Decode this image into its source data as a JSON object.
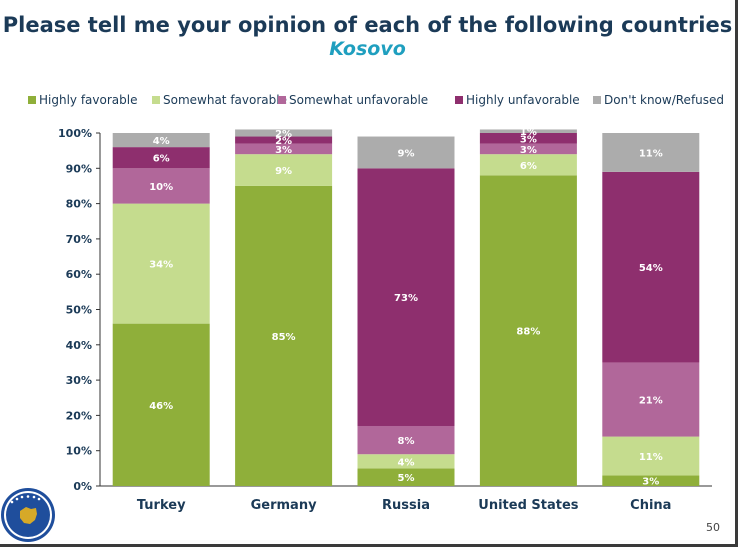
{
  "title": "Please tell me your opinion of each of the following countries",
  "subtitle": "Kosovo",
  "page_number": "50",
  "chart_data": {
    "type": "bar",
    "stacked": true,
    "title": "Please tell me your opinion of each of the following countries",
    "subtitle": "Kosovo",
    "categories": [
      "Turkey",
      "Germany",
      "Russia",
      "United States",
      "China"
    ],
    "ylim": [
      0,
      100
    ],
    "yticks": [
      "0%",
      "10%",
      "20%",
      "30%",
      "40%",
      "50%",
      "60%",
      "70%",
      "80%",
      "90%",
      "100%"
    ],
    "legend_position": "top",
    "series": [
      {
        "name": "Highly favorable",
        "color": "#8faf3a",
        "values": [
          46,
          85,
          5,
          88,
          3
        ],
        "labels": [
          "46%",
          "85%",
          "5%",
          "88%",
          "3%"
        ]
      },
      {
        "name": "Somewhat favorable",
        "color": "#c5dc8e",
        "values": [
          34,
          9,
          4,
          6,
          11
        ],
        "labels": [
          "34%",
          "9%",
          "4%",
          "6%",
          "11%"
        ]
      },
      {
        "name": "Somewhat unfavorable",
        "color": "#b1679a",
        "values": [
          10,
          3,
          8,
          3,
          21
        ],
        "labels": [
          "10%",
          "3%",
          "8%",
          "3%",
          "21%"
        ]
      },
      {
        "name": "Highly unfavorable",
        "color": "#8e2f6e",
        "values": [
          6,
          2,
          73,
          3,
          54
        ],
        "labels": [
          "6%",
          "2%",
          "73%",
          "3%",
          "54%"
        ]
      },
      {
        "name": "Don't know/Refused",
        "color": "#acacac",
        "values": [
          4,
          2,
          9,
          1,
          11
        ],
        "labels": [
          "4%",
          "2%",
          "9%",
          "1%",
          "11%"
        ]
      }
    ]
  }
}
